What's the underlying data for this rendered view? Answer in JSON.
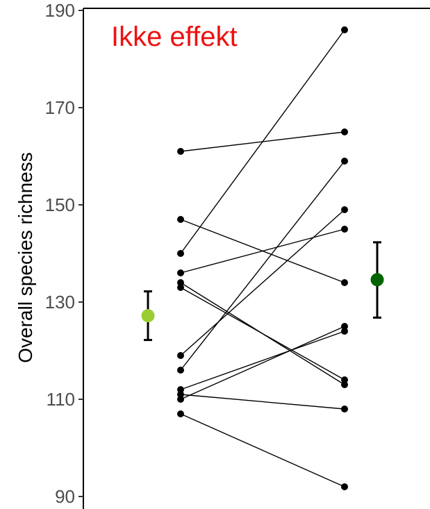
{
  "chart_data": {
    "type": "scatter",
    "title": "",
    "xlabel": "",
    "ylabel": "Overall species richness",
    "ylim": [
      89,
      192
    ],
    "yticks": [
      "90",
      "110",
      "130",
      "150",
      "170",
      "190"
    ],
    "grid": false,
    "annotation": {
      "text": "Ikke effekt",
      "color": "#ee1111"
    },
    "paired_lines": [
      [
        161,
        165
      ],
      [
        147,
        134
      ],
      [
        140,
        186
      ],
      [
        136,
        145
      ],
      [
        134,
        113
      ],
      [
        133,
        114
      ],
      [
        119,
        149
      ],
      [
        116,
        159
      ],
      [
        112,
        124
      ],
      [
        111,
        108
      ],
      [
        110,
        125
      ],
      [
        107,
        92
      ]
    ],
    "summary_points": [
      {
        "mean": 127.2,
        "lower": 122.2,
        "upper": 132.2,
        "color": "#9acd32"
      },
      {
        "mean": 134.6,
        "lower": 126.8,
        "upper": 142.3,
        "color": "#006400"
      }
    ]
  }
}
